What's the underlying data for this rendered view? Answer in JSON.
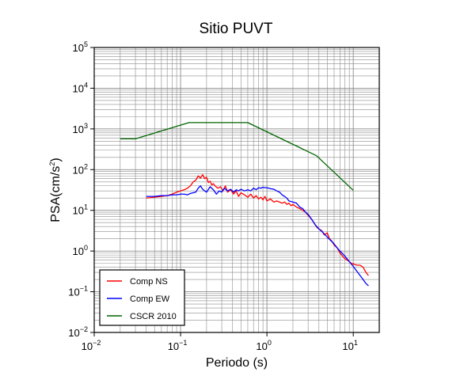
{
  "chart_data": {
    "type": "line",
    "title": "Sitio PUVT",
    "xlabel": "Periodo (s)",
    "ylabel": "PSA(cm/s2)",
    "ylabel_base": "PSA(cm/s",
    "ylabel_sup": "2",
    "ylabel_close": ")",
    "x_scale": "log",
    "y_scale": "log",
    "xlim": [
      0.01,
      20
    ],
    "ylim": [
      0.01,
      100000
    ],
    "x_ticks": [
      {
        "value": 0.01,
        "base": "10",
        "exp": "−2"
      },
      {
        "value": 0.1,
        "base": "10",
        "exp": "−1"
      },
      {
        "value": 1,
        "base": "10",
        "exp": "0"
      },
      {
        "value": 10,
        "base": "10",
        "exp": "1"
      }
    ],
    "y_ticks": [
      {
        "value": 0.01,
        "base": "10",
        "exp": "−2"
      },
      {
        "value": 0.1,
        "base": "10",
        "exp": "−1"
      },
      {
        "value": 1,
        "base": "10",
        "exp": "0"
      },
      {
        "value": 10,
        "base": "10",
        "exp": "1"
      },
      {
        "value": 100,
        "base": "10",
        "exp": "2"
      },
      {
        "value": 1000,
        "base": "10",
        "exp": "3"
      },
      {
        "value": 10000,
        "base": "10",
        "exp": "4"
      },
      {
        "value": 100000,
        "base": "10",
        "exp": "5"
      }
    ],
    "grid": true,
    "legend_position": "bottom-left",
    "series": [
      {
        "name": "Comp NS",
        "color": "#ff0000",
        "x": [
          0.04,
          0.05,
          0.06,
          0.07,
          0.08,
          0.09,
          0.1,
          0.11,
          0.12,
          0.13,
          0.14,
          0.15,
          0.16,
          0.17,
          0.18,
          0.19,
          0.2,
          0.21,
          0.22,
          0.23,
          0.24,
          0.25,
          0.27,
          0.29,
          0.31,
          0.33,
          0.35,
          0.38,
          0.41,
          0.44,
          0.47,
          0.5,
          0.55,
          0.6,
          0.65,
          0.7,
          0.75,
          0.8,
          0.85,
          0.9,
          0.95,
          1.0,
          1.1,
          1.2,
          1.3,
          1.4,
          1.5,
          1.6,
          1.7,
          1.8,
          1.9,
          2.0,
          2.2,
          2.4,
          2.6,
          2.8,
          3.0,
          3.2,
          3.4,
          3.6,
          3.8,
          4.0,
          4.3,
          4.6,
          5.0,
          5.3,
          5.6,
          6.0,
          6.5,
          7.0,
          7.5,
          8.0,
          8.5,
          9.0,
          9.5,
          10.0,
          11.0,
          12.0,
          13.0,
          14.0,
          15.0
        ],
        "values": [
          20,
          21,
          22,
          23,
          25,
          28,
          30,
          32,
          35,
          40,
          50,
          55,
          70,
          62,
          75,
          60,
          65,
          48,
          52,
          42,
          45,
          40,
          35,
          38,
          30,
          40,
          28,
          32,
          25,
          30,
          22,
          27,
          24,
          21,
          25,
          20,
          23,
          19,
          21,
          18,
          22,
          17,
          19,
          16,
          17,
          16,
          15,
          16,
          14,
          15,
          13,
          14,
          12,
          11,
          10,
          9,
          7.5,
          6.5,
          5.5,
          4.5,
          3.8,
          3.5,
          3.2,
          2.5,
          2.8,
          2.0,
          1.8,
          1.4,
          1.2,
          0.9,
          0.75,
          0.65,
          0.6,
          0.55,
          0.5,
          0.48,
          0.45,
          0.45,
          0.4,
          0.3,
          0.25
        ]
      },
      {
        "name": "Comp EW",
        "color": "#0000ff",
        "x": [
          0.04,
          0.05,
          0.06,
          0.07,
          0.08,
          0.09,
          0.1,
          0.11,
          0.12,
          0.13,
          0.14,
          0.15,
          0.16,
          0.17,
          0.18,
          0.19,
          0.2,
          0.22,
          0.24,
          0.26,
          0.28,
          0.3,
          0.32,
          0.35,
          0.38,
          0.41,
          0.44,
          0.47,
          0.5,
          0.55,
          0.6,
          0.65,
          0.7,
          0.75,
          0.8,
          0.85,
          0.9,
          0.95,
          1.0,
          1.1,
          1.2,
          1.3,
          1.4,
          1.5,
          1.6,
          1.7,
          1.8,
          2.0,
          2.2,
          2.4,
          2.6,
          2.8,
          3.0,
          3.3,
          3.6,
          4.0,
          4.5,
          5.0,
          5.5,
          6.0,
          6.5,
          7.0,
          8.0,
          9.0,
          10.0,
          11.0,
          12.0,
          13.0,
          14.0,
          15.0
        ],
        "values": [
          22,
          22,
          23,
          23,
          24,
          24,
          25,
          25,
          24,
          26,
          27,
          28,
          35,
          40,
          33,
          30,
          28,
          38,
          32,
          25,
          30,
          28,
          35,
          30,
          33,
          28,
          32,
          30,
          33,
          30,
          32,
          30,
          35,
          32,
          36,
          35,
          37,
          36,
          36,
          34,
          33,
          30,
          28,
          24,
          22,
          20,
          17,
          16,
          15,
          12,
          11,
          9,
          8,
          6,
          4.5,
          3.5,
          2.8,
          2.2,
          1.8,
          1.5,
          1.2,
          1.0,
          0.75,
          0.55,
          0.42,
          0.32,
          0.25,
          0.2,
          0.16,
          0.14
        ]
      },
      {
        "name": "CSCR 2010",
        "color": "#006400",
        "x": [
          0.02,
          0.03,
          0.125,
          0.6,
          3.75,
          10.0
        ],
        "values": [
          570,
          570,
          1430,
          1430,
          220,
          31
        ]
      }
    ]
  }
}
